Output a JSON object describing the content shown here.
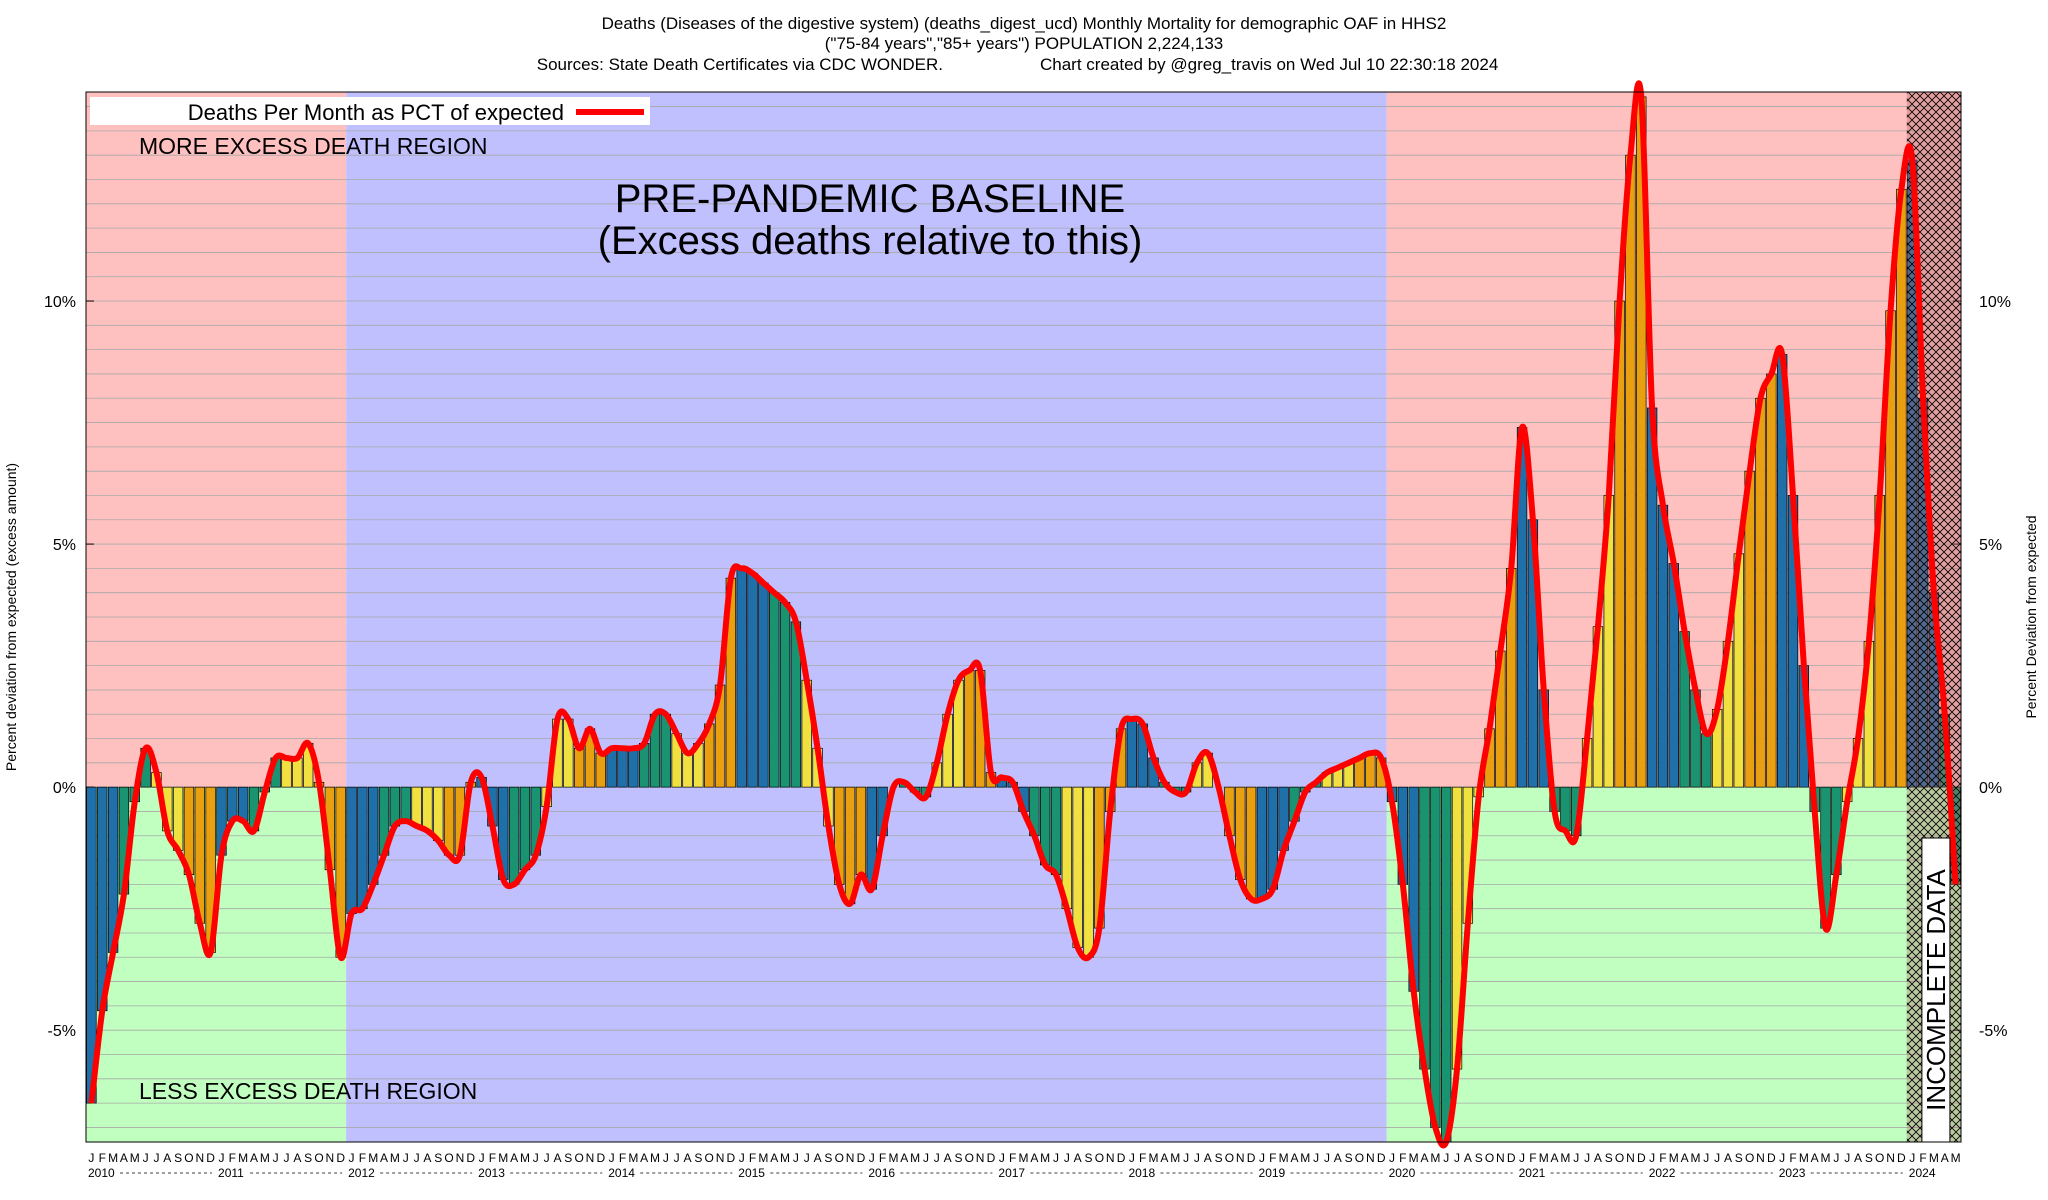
{
  "chart_data": {
    "type": "bar",
    "title": "Deaths (Diseases of the digestive system) (deaths_digest_ucd) Monthly Mortality for demographic OAF in HHS2",
    "subtitle": "(\"75-84 years\",\"85+ years\") POPULATION 2,224,133",
    "source": "Sources: State Death Certificates via CDC WONDER.",
    "credit": "Chart created by @greg_travis on Wed Jul 10 22:30:18 2024",
    "ylabel": "Percent deviation from expected (excess amount)",
    "y2label": "Percent Deviation from expected",
    "legend_label": "Deaths Per Month as PCT of expected",
    "line_color": "#ff0000",
    "quarter_colors": [
      "#1f6fa8",
      "#1a9470",
      "#f0e040",
      "#e8a010"
    ],
    "region_colors": {
      "above": "#ffc0c0",
      "below": "#c0ffc0",
      "baseline": "#c0c0ff"
    },
    "baseline_period": [
      2012,
      2019
    ],
    "incomplete_year": 2024,
    "annotations": {
      "more": "MORE EXCESS DEATH REGION",
      "less": "LESS EXCESS DEATH REGION",
      "baseline": "PRE-PANDEMIC BASELINE",
      "baseline_note": "(Excess deaths relative to this)",
      "incomplete": "INCOMPLETE DATA"
    },
    "months": [
      "J",
      "F",
      "M",
      "A",
      "M",
      "J",
      "J",
      "A",
      "S",
      "O",
      "N",
      "D"
    ],
    "years": [
      2010,
      2011,
      2012,
      2013,
      2014,
      2015,
      2016,
      2017,
      2018,
      2019,
      2020,
      2021,
      2022,
      2023,
      2024
    ],
    "values": [
      -6.5,
      -4.6,
      -3.4,
      -2.2,
      -0.3,
      0.8,
      0.3,
      -0.9,
      -1.3,
      -1.8,
      -2.8,
      -3.4,
      -1.4,
      -0.7,
      -0.7,
      -0.9,
      -0.1,
      0.6,
      0.6,
      0.6,
      0.9,
      0.1,
      -1.7,
      -3.5,
      -2.6,
      -2.5,
      -2.0,
      -1.4,
      -0.8,
      -0.7,
      -0.8,
      -0.9,
      -1.1,
      -1.4,
      -1.4,
      0.1,
      0.2,
      -0.8,
      -1.9,
      -2.0,
      -1.7,
      -1.4,
      -0.4,
      1.4,
      1.4,
      0.8,
      1.2,
      0.7,
      0.8,
      0.8,
      0.8,
      0.9,
      1.5,
      1.5,
      1.1,
      0.7,
      0.9,
      1.3,
      2.1,
      4.3,
      4.5,
      4.4,
      4.2,
      4.0,
      3.8,
      3.4,
      2.2,
      0.8,
      -0.8,
      -2.0,
      -2.4,
      -1.8,
      -2.1,
      -1.0,
      0.0,
      0.1,
      -0.1,
      -0.2,
      0.5,
      1.5,
      2.2,
      2.4,
      2.4,
      0.3,
      0.2,
      0.1,
      -0.5,
      -1.0,
      -1.6,
      -1.8,
      -2.5,
      -3.3,
      -3.5,
      -2.9,
      -0.5,
      1.2,
      1.4,
      1.3,
      0.6,
      0.1,
      -0.1,
      -0.1,
      0.5,
      0.7,
      0.0,
      -1.0,
      -1.9,
      -2.3,
      -2.3,
      -2.1,
      -1.3,
      -0.7,
      -0.1,
      0.1,
      0.3,
      0.4,
      0.5,
      0.6,
      0.7,
      0.6,
      -0.3,
      -2.0,
      -4.2,
      -5.8,
      -7.0,
      -7.3,
      -5.8,
      -2.8,
      -0.2,
      1.2,
      2.8,
      4.5,
      7.4,
      5.5,
      2.0,
      -0.5,
      -0.9,
      -1.0,
      1.0,
      3.3,
      6.0,
      10.0,
      13.0,
      14.2,
      7.8,
      5.8,
      4.6,
      3.2,
      2.0,
      1.1,
      1.6,
      3.0,
      4.8,
      6.5,
      8.0,
      8.5,
      8.9,
      6.0,
      2.5,
      -0.5,
      -2.9,
      -1.8,
      -0.3,
      1.0,
      3.0,
      6.0,
      9.8,
      12.3,
      12.9,
      8.0,
      4.0,
      1.5,
      -2.0
    ],
    "ylim": [
      -7.3,
      14.3
    ],
    "yticks": [
      {
        "value": -5,
        "label": "-5%"
      },
      {
        "value": 0,
        "label": "0%"
      },
      {
        "value": 5,
        "label": "5%"
      },
      {
        "value": 10,
        "label": "10%"
      }
    ],
    "grid": true,
    "grid_lines": [
      -7,
      -6.5,
      -6,
      -5.5,
      -5,
      -4.5,
      -4,
      -3.5,
      -3,
      -2.5,
      -2,
      -1.5,
      -1,
      -0.5,
      0,
      0.5,
      1,
      1.5,
      2,
      2.5,
      3,
      3.5,
      4,
      4.5,
      5,
      5.5,
      6,
      6.5,
      7,
      7.5,
      8,
      8.5,
      9,
      9.5,
      10,
      10.5,
      11,
      11.5,
      12,
      12.5,
      13,
      13.5,
      14
    ]
  }
}
